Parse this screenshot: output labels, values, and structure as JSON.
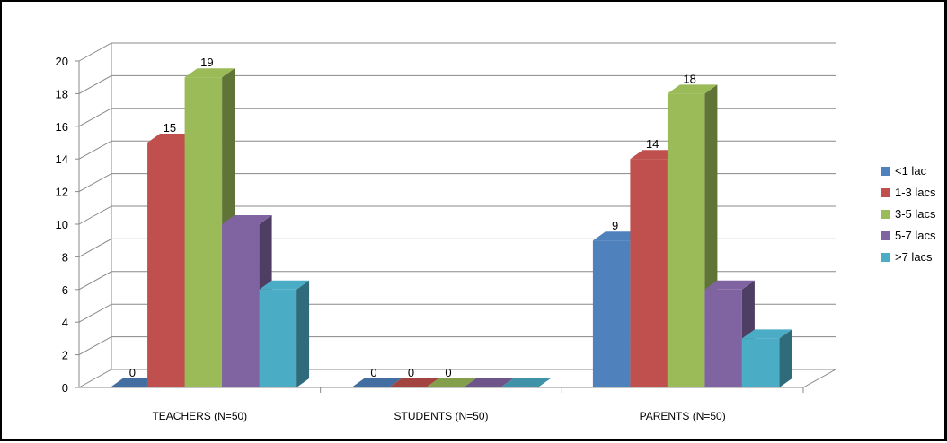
{
  "chart_data": {
    "type": "bar",
    "title": "",
    "xlabel": "",
    "ylabel": "",
    "ylim": [
      0,
      20
    ],
    "yticks": [
      0,
      2,
      4,
      6,
      8,
      10,
      12,
      14,
      16,
      18,
      20
    ],
    "grid": true,
    "legend_position": "right",
    "categories": [
      "TEACHERS (N=50)",
      "STUDENTS (N=50)",
      "PARENTS (N=50)"
    ],
    "series": [
      {
        "name": "<1 lac",
        "color": "#4F81BD",
        "values": [
          0,
          0,
          9
        ],
        "labels": [
          "0",
          "0",
          "9"
        ]
      },
      {
        "name": "1-3 lacs",
        "color": "#C0504D",
        "values": [
          15,
          0,
          14
        ],
        "labels": [
          "15",
          "0",
          "14"
        ]
      },
      {
        "name": "3-5 lacs",
        "color": "#9BBB59",
        "values": [
          19,
          0,
          18
        ],
        "labels": [
          "19",
          "0",
          "18"
        ]
      },
      {
        "name": "5-7 lacs",
        "color": "#8064A2",
        "values": [
          10,
          0,
          6
        ],
        "labels": [
          "",
          "",
          ""
        ]
      },
      {
        "name": ">7 lacs",
        "color": "#4BACC6",
        "values": [
          6,
          0,
          3
        ],
        "labels": [
          "",
          "",
          ""
        ]
      }
    ]
  }
}
